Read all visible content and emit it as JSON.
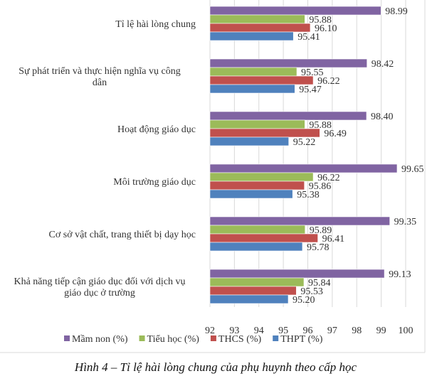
{
  "chart_data": {
    "type": "bar",
    "orientation": "horizontal",
    "categories": [
      [
        "Tỉ lệ hài lòng chung"
      ],
      [
        "Sự phát triển và thực hiện nghĩa vụ công",
        "dân"
      ],
      [
        "Hoạt động giáo dục"
      ],
      [
        "Môi trường giáo dục"
      ],
      [
        "Cơ sở vật chất, trang thiết bị dạy học"
      ],
      [
        "Khả năng tiếp cận giáo dục đối với dịch vụ",
        "giáo dục ở trường"
      ]
    ],
    "series": [
      {
        "name": "Mầm non (%)",
        "color": "#8064a2",
        "values": [
          98.99,
          98.42,
          98.4,
          99.65,
          99.35,
          99.13
        ]
      },
      {
        "name": "Tiểu học (%)",
        "color": "#9bbb59",
        "values": [
          95.88,
          95.55,
          95.88,
          96.22,
          95.89,
          95.84
        ]
      },
      {
        "name": "THCS (%)",
        "color": "#c0504d",
        "values": [
          96.1,
          96.22,
          96.49,
          95.86,
          96.41,
          95.53
        ]
      },
      {
        "name": "THPT (%)",
        "color": "#4f81bd",
        "values": [
          95.41,
          95.47,
          95.22,
          95.38,
          95.78,
          95.2
        ]
      }
    ],
    "value_labels": [
      [
        "98.99",
        "95.88",
        "96.10",
        "95.41"
      ],
      [
        "98.42",
        "95.55",
        "96.22",
        "95.47"
      ],
      [
        "98.40",
        "95.88",
        "96.49",
        "95.22"
      ],
      [
        "99.65",
        "96.22",
        "95.86",
        "95.38"
      ],
      [
        "99.35",
        "95.89",
        "96.41",
        "95.78"
      ],
      [
        "99.13",
        "95.84",
        "95.53",
        "95.20"
      ]
    ],
    "xlim": [
      92,
      100
    ],
    "xticks": [
      "92",
      "93",
      "94",
      "95",
      "96",
      "97",
      "98",
      "99",
      "100"
    ],
    "grid": "vertical",
    "legend": "bottom"
  },
  "caption": "Hình 4 – Tỉ lệ hài lòng chung của phụ huynh theo cấp học"
}
